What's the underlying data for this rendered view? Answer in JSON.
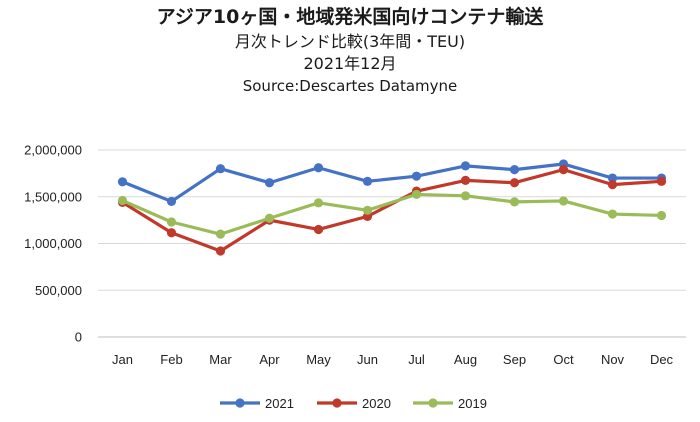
{
  "chart_data": {
    "type": "line",
    "title": "アジア10ヶ国・地域発米国向けコンテナ輸送",
    "subtitle": "月次トレンド比較(3年間・TEU)",
    "period": "2021年12月",
    "source": "Source:Descartes Datamyne",
    "categories": [
      "Jan",
      "Feb",
      "Mar",
      "Apr",
      "May",
      "Jun",
      "Jul",
      "Aug",
      "Sep",
      "Oct",
      "Nov",
      "Dec"
    ],
    "y_ticks": [
      "0",
      "500,000",
      "1,000,000",
      "1,500,000",
      "2,000,000"
    ],
    "ylim": [
      0,
      2000000
    ],
    "grid": true,
    "legend_position": "bottom",
    "series": [
      {
        "name": "2021",
        "color": "#4472C4",
        "values": [
          1660000,
          1450000,
          1800000,
          1650000,
          1810000,
          1665000,
          1720000,
          1830000,
          1790000,
          1850000,
          1700000,
          1700000
        ]
      },
      {
        "name": "2020",
        "color": "#C0392B",
        "values": [
          1440000,
          1115000,
          920000,
          1250000,
          1150000,
          1290000,
          1560000,
          1675000,
          1650000,
          1790000,
          1630000,
          1665000
        ]
      },
      {
        "name": "2019",
        "color": "#9BBB59",
        "values": [
          1460000,
          1230000,
          1100000,
          1270000,
          1435000,
          1355000,
          1525000,
          1510000,
          1445000,
          1455000,
          1315000,
          1300000
        ]
      }
    ]
  }
}
